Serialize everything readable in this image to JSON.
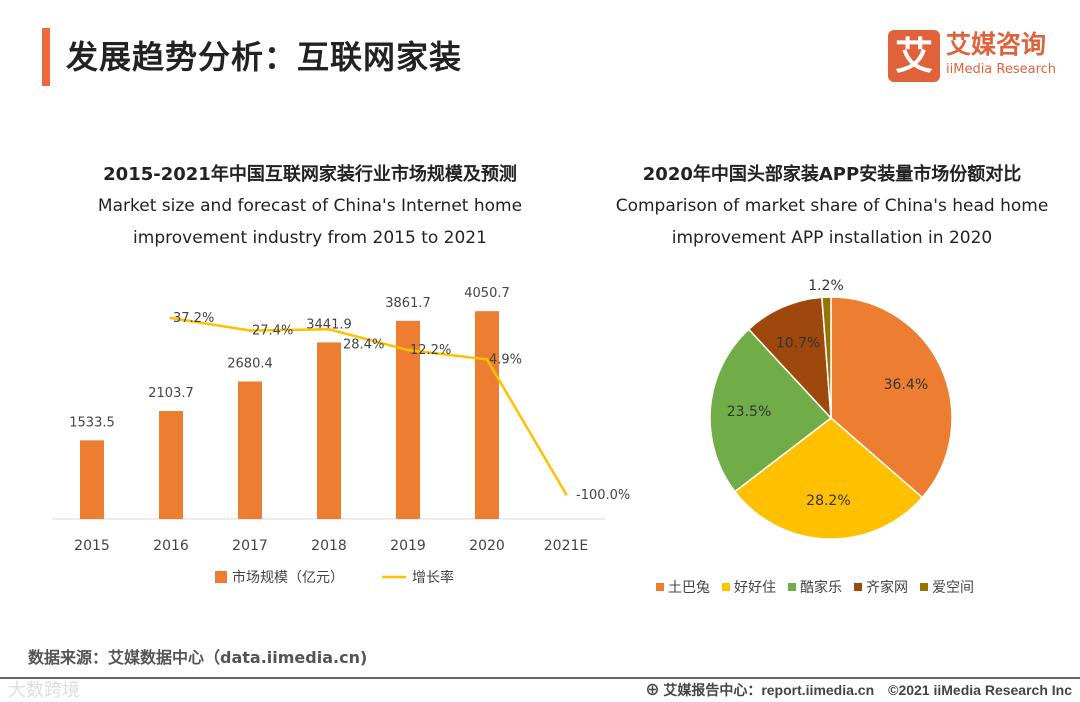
{
  "header": {
    "title": "发展趋势分析：互联网家装",
    "logo_mark": "艾",
    "logo_cn": "艾媒咨询",
    "logo_en": "iiMedia Research"
  },
  "colors": {
    "bar": "#ED7D31",
    "line": "#FFC000",
    "accent": "#ED6B3B"
  },
  "chart_data": [
    {
      "type": "bar",
      "title": "2015-2021年中国互联网家装行业市场规模及预测",
      "subtitle": [
        "Market size and forecast of China's Internet home",
        "improvement industry from 2015 to 2021"
      ],
      "categories": [
        "2015",
        "2016",
        "2017",
        "2018",
        "2019",
        "2020",
        "2021E"
      ],
      "series": [
        {
          "name": "市场规模（亿元）",
          "kind": "bar",
          "values": [
            1533.5,
            2103.7,
            2680.4,
            3441.9,
            3861.7,
            4050.7,
            null
          ],
          "labels": [
            "1533.5",
            "2103.7",
            "2680.4",
            "3441.9",
            "3861.7",
            "4050.7",
            ""
          ]
        },
        {
          "name": "增长率",
          "kind": "line",
          "values": [
            null,
            37.2,
            27.4,
            28.4,
            12.2,
            4.9,
            -100.0
          ],
          "labels": [
            "",
            "37.2%",
            "27.4%",
            "28.4%",
            "12.2%",
            "4.9%",
            "-100.0%"
          ]
        }
      ],
      "legend": "bottom"
    },
    {
      "type": "pie",
      "title": "2020年中国头部家装APP安装量市场份额对比",
      "subtitle": [
        "Comparison of market share of China's head home",
        "improvement APP installation in 2020"
      ],
      "slices": [
        {
          "name": "土巴兔",
          "value": 36.4,
          "label": "36.4%",
          "color": "#ED7D31"
        },
        {
          "name": "好好住",
          "value": 28.2,
          "label": "28.2%",
          "color": "#FFC000"
        },
        {
          "name": "酷家乐",
          "value": 23.5,
          "label": "23.5%",
          "color": "#70AD47"
        },
        {
          "name": "齐家网",
          "value": 10.7,
          "label": "10.7%",
          "color": "#9E480E"
        },
        {
          "name": "爱空间",
          "value": 1.2,
          "label": "1.2%",
          "color": "#997300"
        }
      ],
      "legend": "bottom"
    }
  ],
  "footer": {
    "source": "数据来源：艾媒数据中心（data.iimedia.cn)",
    "report": "⊕ 艾媒报告中心：report.iimedia.cn　©2021  iiMedia Research  Inc",
    "watermark": "大数跨境"
  }
}
